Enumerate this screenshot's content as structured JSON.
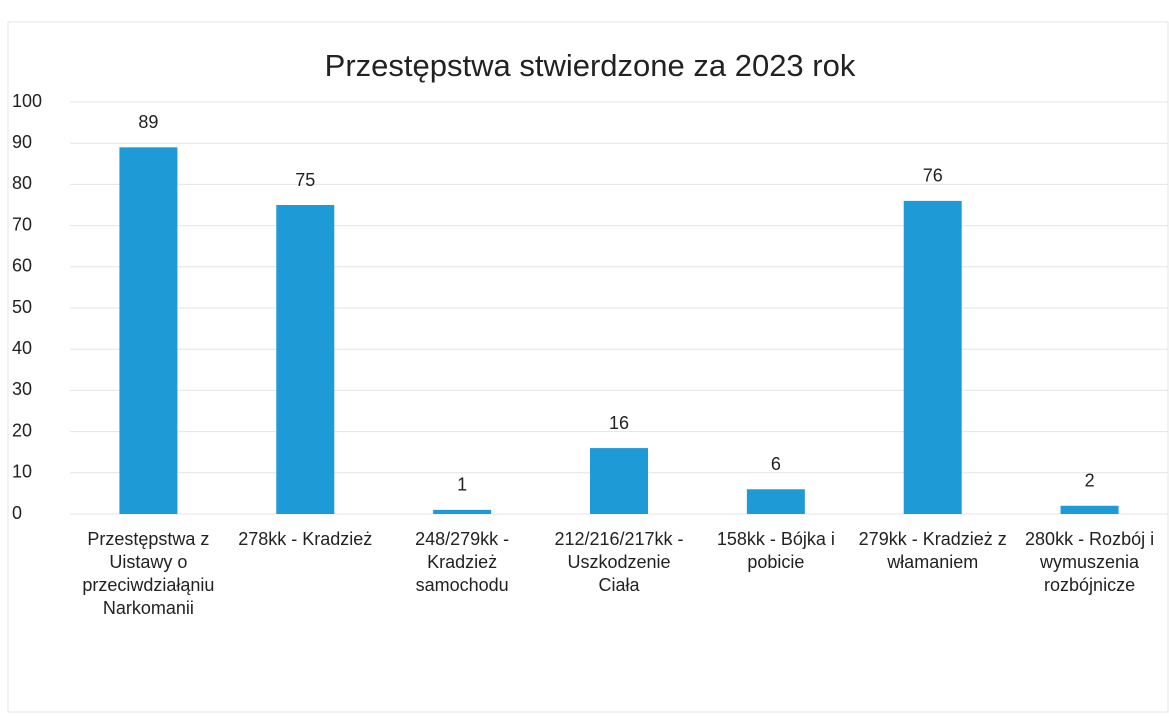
{
  "chart_data": {
    "type": "bar",
    "title": "Przestępstwa stwierdzone za 2023 rok",
    "categories": [
      "Przestępstwa z Uistawy o przeciwdziałąniu Narkomanii",
      "278kk - Kradzież",
      "248/279kk - Kradzież samochodu",
      "212/216/217kk - Uszkodzenie Ciała",
      "158kk - Bójka i pobicie",
      "279kk - Kradzież z włamaniem",
      "280kk - Rozbój i wymuszenia rozbójnicze"
    ],
    "values": [
      89,
      75,
      1,
      16,
      6,
      76,
      2
    ],
    "color": "#1e9ad6",
    "ylim": [
      0,
      100
    ],
    "yticks": [
      0,
      10,
      20,
      30,
      40,
      50,
      60,
      70,
      80,
      90,
      100
    ],
    "grid": true
  }
}
